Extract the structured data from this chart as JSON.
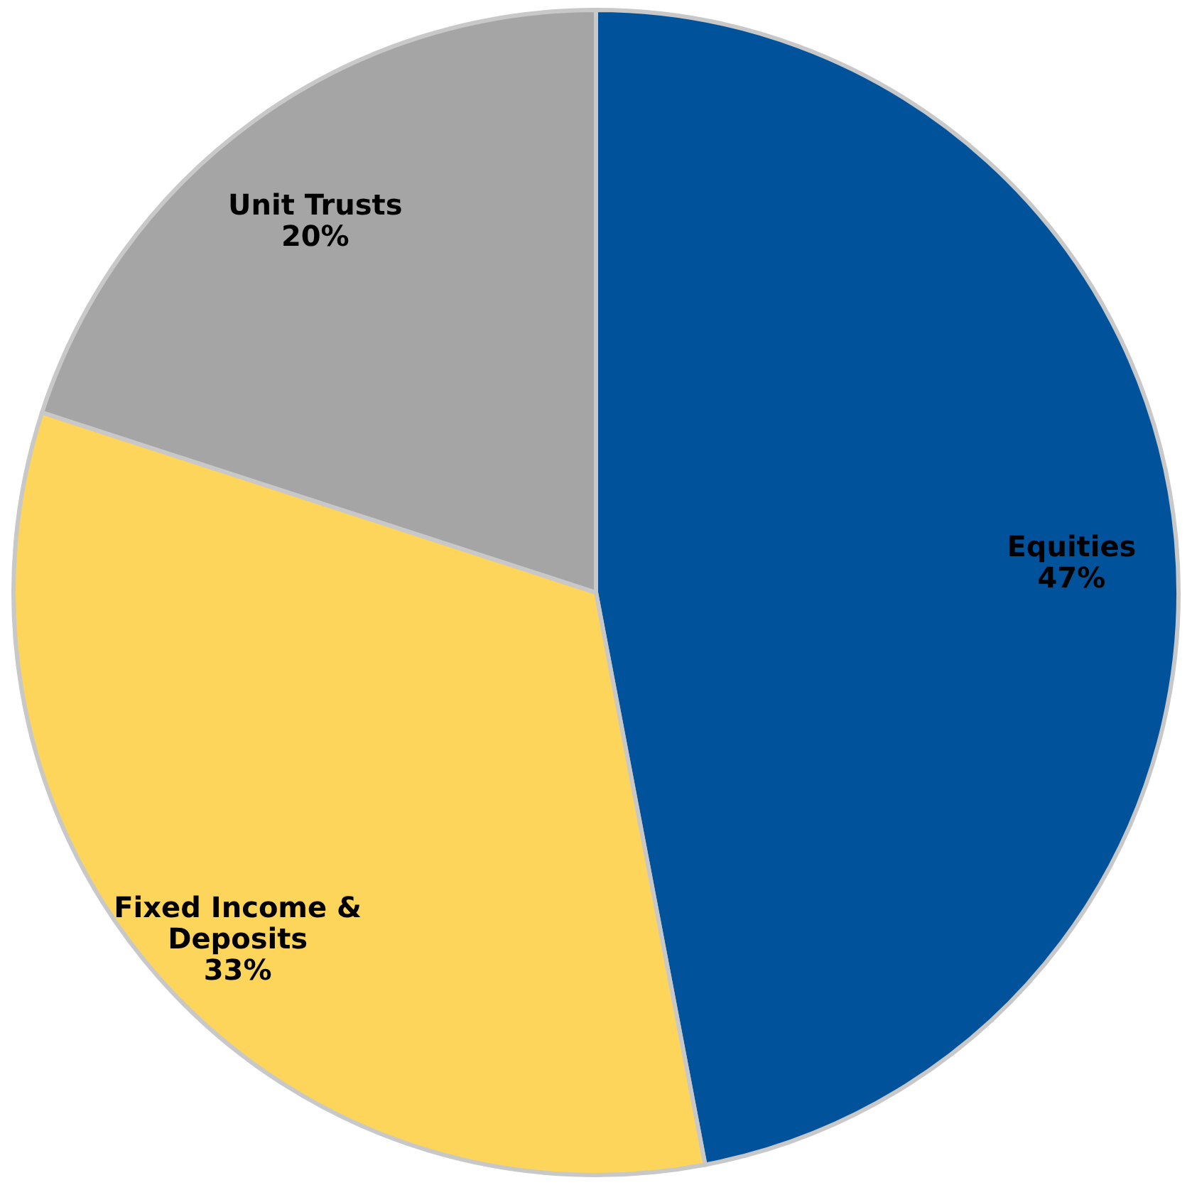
{
  "chart_data": {
    "type": "pie",
    "categories": [
      "Equities",
      "Fixed Income & Deposits",
      "Unit Trusts"
    ],
    "values": [
      47,
      33,
      20
    ],
    "colors": [
      "#00539b",
      "#fdd55a",
      "#a5a5a5"
    ],
    "value_labels": [
      "47%",
      "33%",
      "20%"
    ]
  }
}
